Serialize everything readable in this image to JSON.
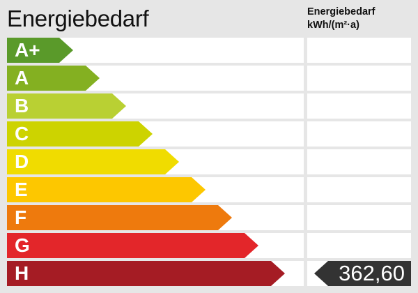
{
  "title": "Energiebedarf",
  "column_header": {
    "line1": "Energiebedarf",
    "line2": "kWh/(m²·a)"
  },
  "classes": [
    {
      "label": "A+",
      "color": "#5a9a2a"
    },
    {
      "label": "A",
      "color": "#84b021"
    },
    {
      "label": "B",
      "color": "#b9d033"
    },
    {
      "label": "C",
      "color": "#cdd300"
    },
    {
      "label": "D",
      "color": "#f0dc00"
    },
    {
      "label": "E",
      "color": "#fdc700"
    },
    {
      "label": "F",
      "color": "#ee7a0d"
    },
    {
      "label": "G",
      "color": "#e3262a"
    },
    {
      "label": "H",
      "color": "#a51c24"
    }
  ],
  "current": {
    "class": "H",
    "value": "362,60",
    "color": "#333333"
  }
}
